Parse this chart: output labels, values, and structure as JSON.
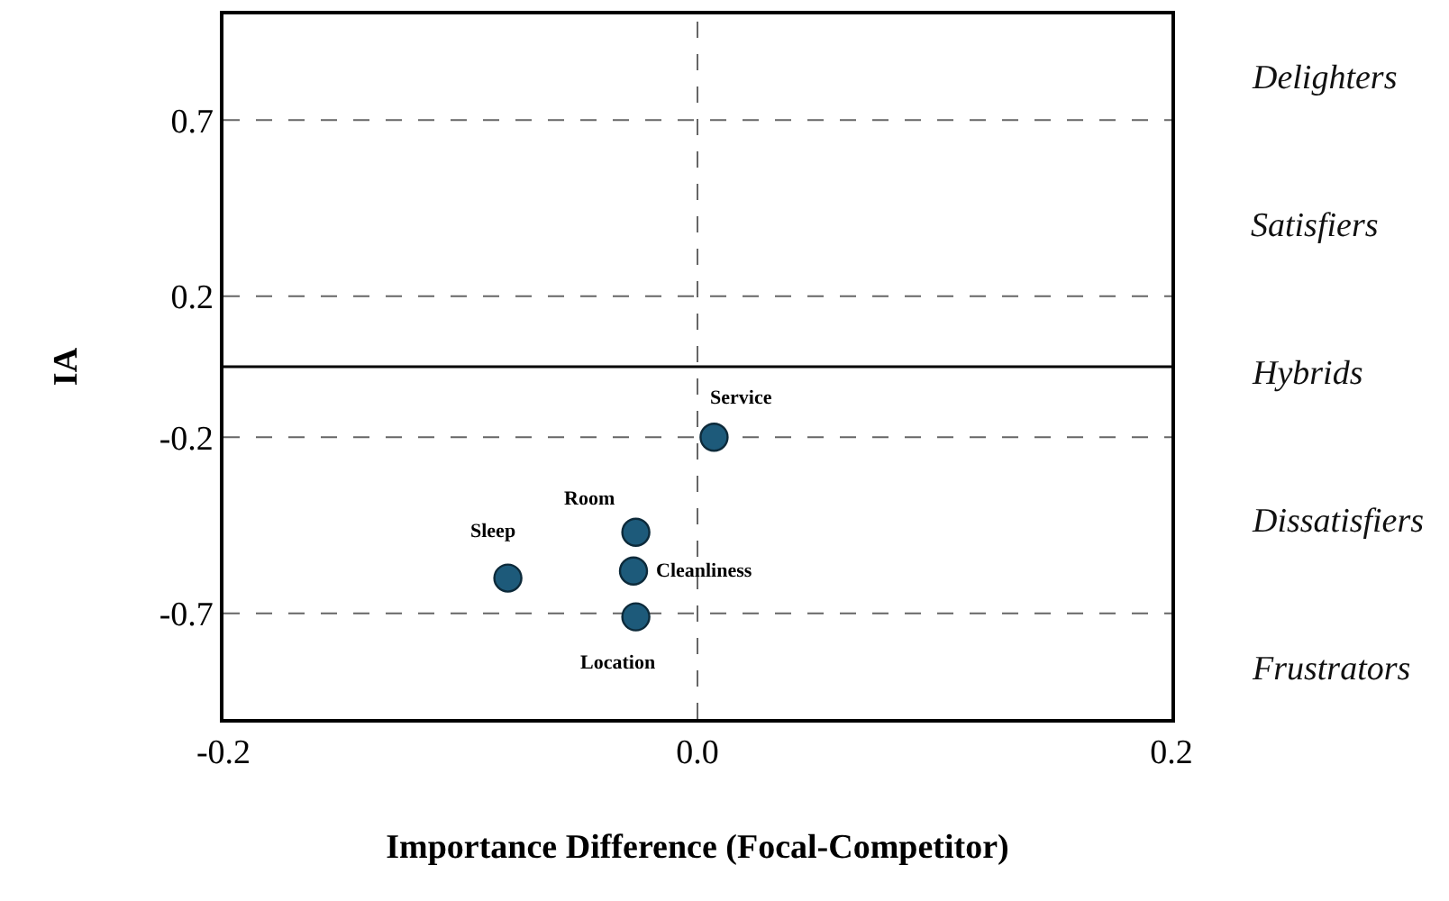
{
  "chart_data": {
    "type": "scatter",
    "xlabel": "Importance Difference (Focal-Competitor)",
    "ylabel": "IA",
    "x": [
      0.007,
      -0.026,
      -0.027,
      -0.08,
      -0.026
    ],
    "series": [
      {
        "color": "#1d5a7a",
        "values": [
          -0.2,
          -0.47,
          -0.58,
          -0.6,
          -0.71
        ]
      }
    ],
    "marker": "circle",
    "xlim": [
      -0.2,
      0.2
    ],
    "xticks": [
      -0.2,
      {
        "value": 0,
        "label": "0.0"
      },
      0.2
    ],
    "ylim": [
      -1,
      1
    ],
    "yticks": [
      0.7,
      0.2,
      -0.2,
      -0.7
    ],
    "ref_lines": [
      {
        "axis": "y",
        "value": 0.7,
        "color": "#666666",
        "line_style": "dashed"
      },
      {
        "axis": "y",
        "value": 0.2,
        "color": "#666666",
        "line_style": "dashed"
      },
      {
        "axis": "y",
        "value": 0,
        "color": "#000000",
        "line_style": "solid"
      },
      {
        "axis": "y",
        "value": -0.2,
        "color": "#666666",
        "line_style": "dashed"
      },
      {
        "axis": "y",
        "value": -0.7,
        "color": "#666666",
        "line_style": "dashed"
      },
      {
        "axis": "x",
        "value": 0,
        "color": "#666666",
        "line_style": "dashed"
      }
    ],
    "annotations": [
      {
        "text": "Service",
        "x": 0.007,
        "y": -0.2
      },
      {
        "text": "Room",
        "x": -0.026,
        "y": -0.47
      },
      {
        "text": "Cleanliness",
        "x": -0.027,
        "y": -0.58
      },
      {
        "text": "Sleep",
        "x": -0.08,
        "y": -0.6
      },
      {
        "text": "Location",
        "x": -0.026,
        "y": -0.71
      },
      "Delighters",
      "Satisfiers",
      "Hybrids",
      "Dissatisfiers",
      "Frustrators"
    ]
  }
}
